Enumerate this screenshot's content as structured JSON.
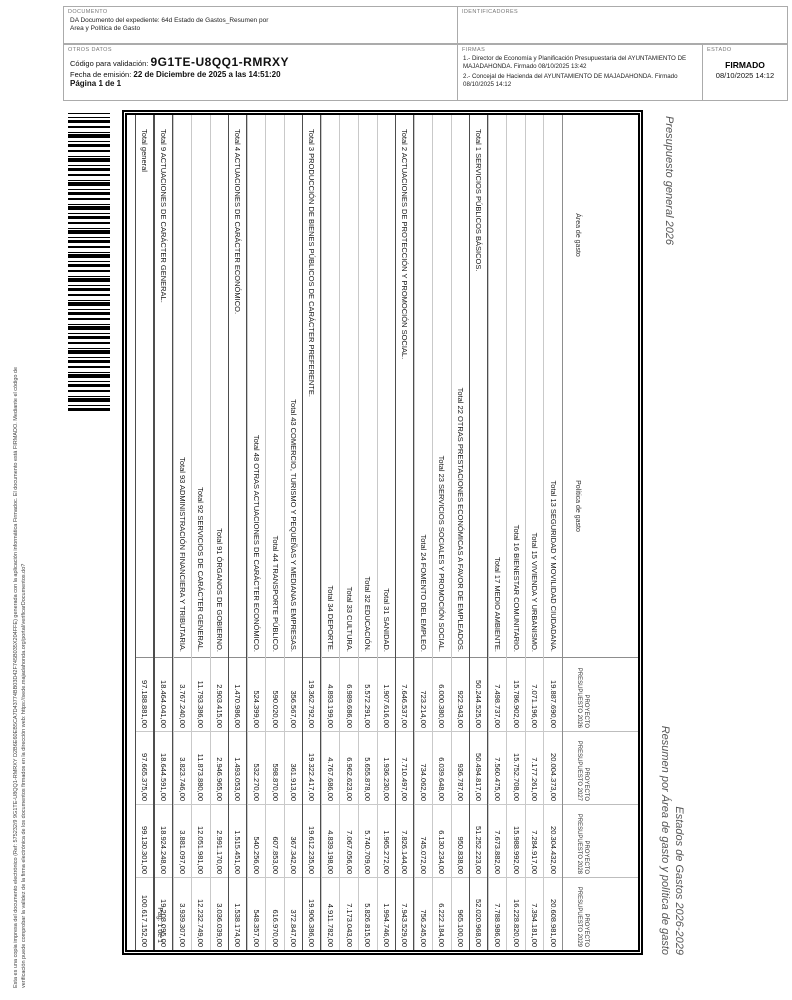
{
  "header": {
    "documento": {
      "label": "DOCUMENTO",
      "linea1": "DA Documento del expediente: 64d Estado de Gastos_Resumen por",
      "linea2": "Area y Política de Gasto"
    },
    "identificadores": {
      "label": "IDENTIFICADORES"
    },
    "otros_datos": {
      "label": "OTROS DATOS",
      "codigo_label": "Código para validación: ",
      "codigo": "9G1TE-U8QQ1-RMRXY",
      "fecha_label": "Fecha de emisión: ",
      "fecha": "22 de Diciembre de 2025 a las 14:51:20",
      "pagina": "Página 1 de 1"
    },
    "firmas": {
      "label": "FIRMAS",
      "items": [
        "1.- Director de Economía y Planificación Presupuestaria del AYUNTAMIENTO DE MAJADAHONDA. Firmado 08/10/2025 13:42",
        "2.- Concejal de Hacienda del AYUNTAMIENTO DE MAJADAHONDA. Firmado 08/10/2025 14:12"
      ]
    },
    "estado": {
      "label": "ESTADO",
      "estado": "FIRMADO",
      "fecha": "08/10/2025 14:12"
    }
  },
  "margin": {
    "linea1": "Esta es una copia impresa del documento electrónico (Ref: 575232/9 9G1TE-U8QQ1-RMRXY D2B6E60EB5CA7D43774BB03D42F745B035X204FFE) generada con la aplicación informática Firmadoc. El documento está FIRMADO. Mediante el código de",
    "linea2": "verificación puede comprobar la validez de la firma electrónica de los documentos firmados en la dirección web: https://sede.majadahonda.org/portal/verificarDocumentos.do?"
  },
  "main": {
    "titulo_izquierda": "Presupuesto general 2026",
    "titulo_derecha_linea1": "Estados de Gastos 2026-2029",
    "titulo_derecha_linea2": "Resumen por Área de gasto y política de gasto",
    "pagina": "Pag. 1 de 1"
  },
  "table": {
    "header_area": "Área de gasto",
    "header_politica": "Política de gasto",
    "anios": [
      {
        "l1": "PROYECTO",
        "l2": "PRESUPUESTO 2026"
      },
      {
        "l1": "PROYECTO",
        "l2": "PRESUPUESTO 2027"
      },
      {
        "l1": "PROYECTO",
        "l2": "PRESUPUESTO 2028"
      },
      {
        "l1": "PROYECTO",
        "l2": "PRESUPUESTO 2029"
      }
    ],
    "rows": [
      {
        "tipo": "politica",
        "label": "Total 13 SEGURIDAD Y MOVILIDAD CIUDADANA.",
        "valores": [
          "19.887.690,00",
          "20.004.373,00",
          "20.304.432,00",
          "20.608.981,00"
        ]
      },
      {
        "tipo": "politica",
        "label": "Total 15 VIVIENDA Y URBANISMO.",
        "valores": [
          "7.071.196,00",
          "7.177.261,00",
          "7.284.917,00",
          "7.394.181,00"
        ]
      },
      {
        "tipo": "politica",
        "label": "Total 16 BIENESTAR COMUNITARIO.",
        "valores": [
          "15.786.902,00",
          "15.752.708,00",
          "15.988.992,00",
          "16.228.820,00"
        ]
      },
      {
        "tipo": "politica",
        "label": "Total 17 MEDIO AMBIENTE.",
        "valores": [
          "7.498.737,00",
          "7.560.475,00",
          "7.673.882,00",
          "7.788.986,00"
        ]
      },
      {
        "tipo": "area",
        "label": "Total 1 SERVICIOS PÚBLICOS BÁSICOS.",
        "valores": [
          "50.244.525,00",
          "50.494.817,00",
          "51.252.223,00",
          "52.020.968,00"
        ]
      },
      {
        "tipo": "politica",
        "label": "Total 22 OTRAS PRESTACIONES ECONÓMICAS A FAVOR DE EMPLEADOS.",
        "valores": [
          "922.943,00",
          "936.787,00",
          "950.838,00",
          "965.100,00"
        ]
      },
      {
        "tipo": "politica",
        "label": "Total 23 SERVICIOS SOCIALES Y PROMOCIÓN SOCIAL.",
        "valores": [
          "6.000.380,00",
          "6.039.648,00",
          "6.130.234,00",
          "6.222.184,00"
        ]
      },
      {
        "tipo": "politica",
        "label": "Total 24 FOMENTO DEL EMPLEO.",
        "valores": [
          "723.214,00",
          "734.062,00",
          "745.072,00",
          "756.245,00"
        ]
      },
      {
        "tipo": "area",
        "label": "Total 2 ACTUACIONES DE PROTECCIÓN Y PROMOCIÓN SOCIAL.",
        "valores": [
          "7.646.537,00",
          "7.710.497,00",
          "7.826.144,00",
          "7.943.529,00"
        ]
      },
      {
        "tipo": "politica",
        "label": "Total 31 SANIDAD.",
        "valores": [
          "1.907.616,00",
          "1.936.230,00",
          "1.965.272,00",
          "1.994.746,00"
        ]
      },
      {
        "tipo": "politica",
        "label": "Total 32 EDUCACIÓN.",
        "valores": [
          "5.572.291,00",
          "5.655.878,00",
          "5.740.709,00",
          "5.826.815,00"
        ]
      },
      {
        "tipo": "politica",
        "label": "Total 33 CULTURA.",
        "valores": [
          "6.989.686,00",
          "6.962.623,00",
          "7.067.056,00",
          "7.173.043,00"
        ]
      },
      {
        "tipo": "politica",
        "label": "Total 34 DEPORTE.",
        "valores": [
          "4.893.199,00",
          "4.767.686,00",
          "4.839.198,00",
          "4.911.782,00"
        ]
      },
      {
        "tipo": "area",
        "label": "Total 3 PRODUCCIÓN DE BIENES PÚBLICOS DE CARÁCTER PREFERENTE.",
        "valores": [
          "19.362.792,00",
          "19.322.417,00",
          "19.612.235,00",
          "19.906.386,00"
        ]
      },
      {
        "tipo": "politica",
        "label": "Total 43 COMERCIO, TURISMO Y PEQUEÑAS Y MEDIANAS EMPRESAS.",
        "valores": [
          "356.567,00",
          "361.913,00",
          "367.342,00",
          "372.847,00"
        ]
      },
      {
        "tipo": "politica",
        "label": "Total 44 TRANSPORTE PÚBLICO.",
        "valores": [
          "590.020,00",
          "598.870,00",
          "607.853,00",
          "616.970,00"
        ]
      },
      {
        "tipo": "politica",
        "label": "Total 48 OTRAS ACTUACIONES DE CARÁCTER ECONÓMICO.",
        "valores": [
          "524.399,00",
          "532.270,00",
          "540.256,00",
          "548.357,00"
        ]
      },
      {
        "tipo": "area",
        "label": "Total 4 ACTUACIONES DE CARÁCTER ECONÓMICO.",
        "valores": [
          "1.470.986,00",
          "1.493.053,00",
          "1.515.451,00",
          "1.538.174,00"
        ]
      },
      {
        "tipo": "politica",
        "label": "Total 91 ÓRGANOS DE GOBIERNO.",
        "valores": [
          "2.903.415,00",
          "2.946.965,00",
          "2.991.170,00",
          "3.036.039,00"
        ]
      },
      {
        "tipo": "politica",
        "label": "Total 92 SERVICIOS DE CARÁCTER GENERAL.",
        "valores": [
          "11.793.386,00",
          "11.873.880,00",
          "12.051.981,00",
          "12.232.749,00"
        ]
      },
      {
        "tipo": "politica",
        "label": "Total 93 ADMINISTRACIÓN FINANCIERA Y TRIBUTARIA.",
        "valores": [
          "3.767.240,00",
          "3.823.746,00",
          "3.881.097,00",
          "3.939.307,00"
        ]
      },
      {
        "tipo": "area",
        "label": "Total 9 ACTUACIONES DE CARÁCTER GENERAL.",
        "valores": [
          "18.464.041,00",
          "18.644.591,00",
          "18.924.248,00",
          "19.208.095,00"
        ]
      },
      {
        "tipo": "general",
        "label": "Total general",
        "valores": [
          "97.188.881,00",
          "97.665.375,00",
          "99.130.301,00",
          "100.617.152,00"
        ]
      }
    ]
  }
}
